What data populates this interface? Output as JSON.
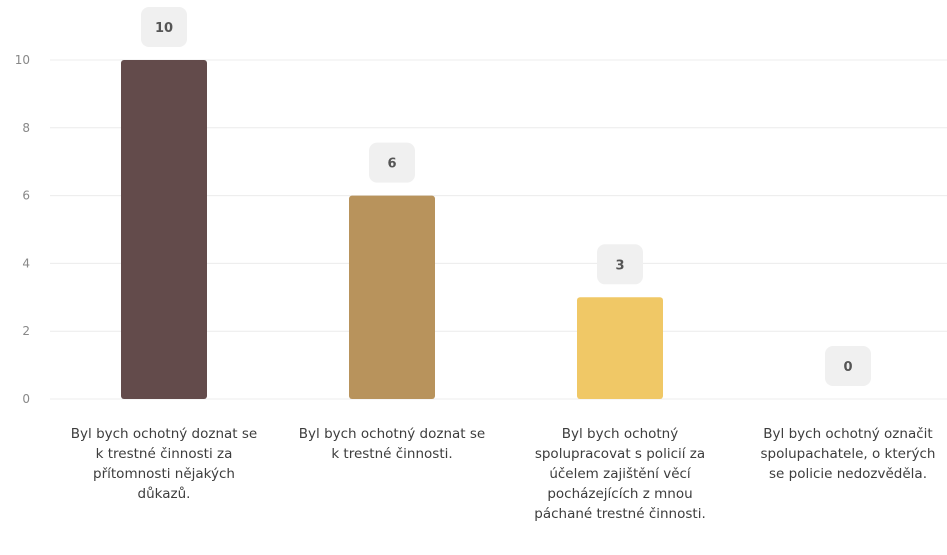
{
  "chart_data": {
    "type": "bar",
    "title": "",
    "xlabel": "",
    "ylabel": "",
    "ylim": [
      0,
      10
    ],
    "yticks": [
      0,
      2,
      4,
      6,
      8,
      10
    ],
    "grid": true,
    "legend": "none",
    "categories": [
      "Byl bych ochotný doznat se k trestné činnosti za přítomnosti nějakých důkazů.",
      "Byl bych ochotný doznat se k trestné činnosti.",
      "Byl bych ochotný spolupracovat s policií za účelem zajištění věcí pocházejících z mnou páchané trestné činnosti.",
      "Byl bych ochotný označit spolupachatele, o kterých se policie nedozvěděla."
    ],
    "values": [
      10,
      6,
      3,
      0
    ],
    "data_labels": [
      "10",
      "6",
      "3",
      "0"
    ],
    "bar_colors": [
      "#634b4b",
      "#b8935c",
      "#f0c866",
      "#f0c866"
    ],
    "gridline_color": "#ececec",
    "tick_color": "#888888",
    "label_badge_color": "#f0f0f0",
    "label_text_color": "#555555"
  }
}
